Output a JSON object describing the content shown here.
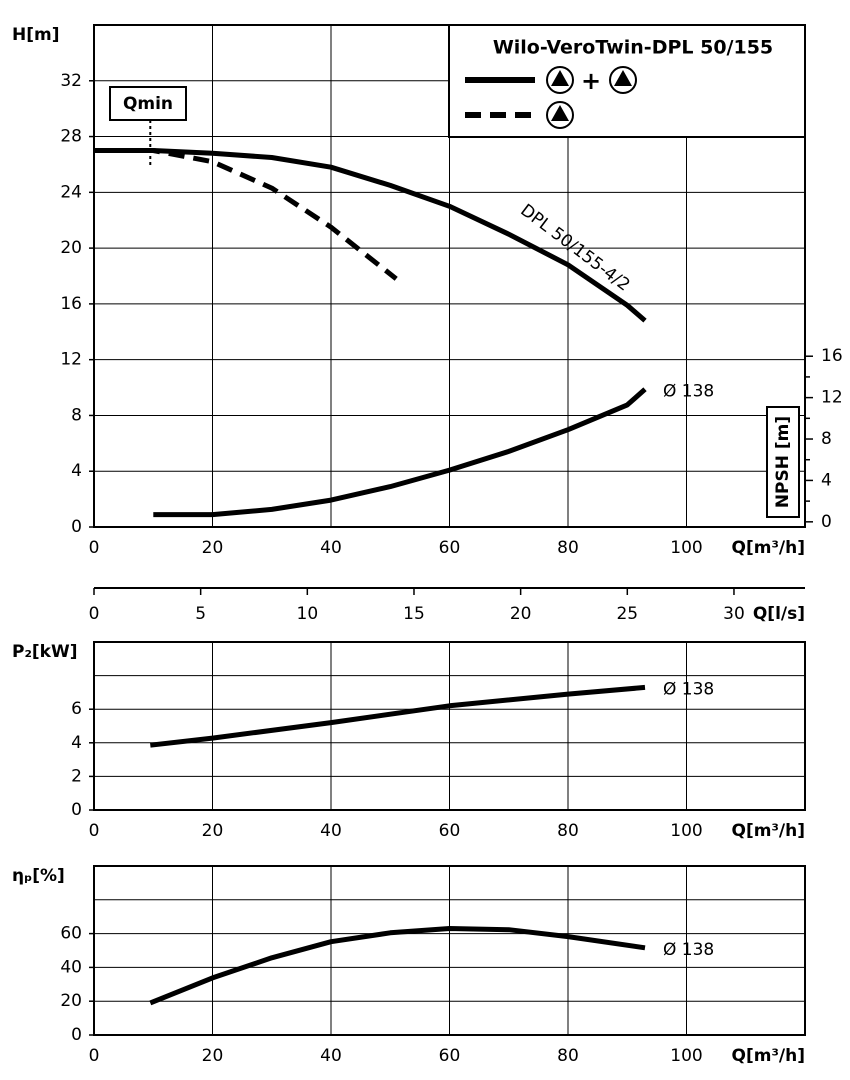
{
  "chart_data": [
    {
      "type": "line",
      "ylabel": "H[m]",
      "xlabel": "Q[m³/h]",
      "xlim": [
        0,
        120
      ],
      "xticks": [
        0,
        20,
        40,
        60,
        80,
        100
      ],
      "ylim": [
        0,
        36
      ],
      "yticks": [
        0,
        4,
        8,
        12,
        16,
        20,
        24,
        28,
        32
      ],
      "grid": true,
      "y2label": "NPSH [m]",
      "y2lim": [
        -0.5,
        48
      ],
      "y2ticks": [
        0,
        4,
        8,
        12,
        16
      ],
      "y2minor": [
        2,
        6,
        10,
        14
      ],
      "x2label": "Q[l/s]",
      "x2lim": [
        0,
        33.33
      ],
      "x2ticks": [
        0,
        5,
        10,
        15,
        20,
        25,
        30
      ],
      "legend": {
        "title": "Wilo-VeroTwin-DPL 50/155",
        "plus": "+"
      },
      "qmin": {
        "text": "Qmin",
        "x": 9.5
      },
      "series": [
        {
          "label": "DPL 50/155-4/2",
          "color": "#000000",
          "dash": false,
          "x": [
            0,
            10,
            20,
            30,
            40,
            50,
            60,
            70,
            80,
            90,
            93
          ],
          "values": [
            27.0,
            27.0,
            26.8,
            26.5,
            25.8,
            24.5,
            23.0,
            21.0,
            18.8,
            15.9,
            14.8
          ]
        },
        {
          "color": "#000000",
          "dash": true,
          "x": [
            0,
            10,
            20,
            30,
            40,
            51
          ],
          "values": [
            27.0,
            27.0,
            26.2,
            24.3,
            21.5,
            17.8
          ]
        },
        {
          "label": "Ø 138",
          "color": "#000000",
          "dash": false,
          "axis": "y2",
          "x": [
            10,
            20,
            30,
            40,
            50,
            60,
            70,
            80,
            90,
            93
          ],
          "values": [
            0.7,
            0.7,
            1.2,
            2.1,
            3.4,
            5.0,
            6.8,
            8.9,
            11.3,
            12.8
          ]
        }
      ]
    },
    {
      "type": "line",
      "ylabel": "P₂[kW]",
      "xlabel": "Q[m³/h]",
      "xlim": [
        0,
        120
      ],
      "xticks": [
        0,
        20,
        40,
        60,
        80,
        100
      ],
      "ylim": [
        0,
        10
      ],
      "yticks": [
        0,
        2,
        4,
        6
      ],
      "ygrid": [
        2,
        4,
        6,
        8
      ],
      "grid": true,
      "series": [
        {
          "label": "Ø 138",
          "color": "#000000",
          "dash": false,
          "x": [
            9.5,
            20,
            40,
            60,
            80,
            93
          ],
          "values": [
            3.86,
            4.28,
            5.2,
            6.2,
            6.9,
            7.3
          ]
        }
      ]
    },
    {
      "type": "line",
      "ylabel": "ηₚ[%]",
      "xlabel": "Q[m³/h]",
      "xlim": [
        0,
        120
      ],
      "xticks": [
        0,
        20,
        40,
        60,
        80,
        100
      ],
      "ylim": [
        0,
        100
      ],
      "yticks": [
        0,
        20,
        40,
        60
      ],
      "ygrid": [
        20,
        40,
        60,
        80
      ],
      "grid": true,
      "series": [
        {
          "label": "Ø 138",
          "color": "#000000",
          "dash": false,
          "x": [
            9.5,
            20,
            30,
            40,
            50,
            60,
            70,
            80,
            93
          ],
          "values": [
            19,
            33.8,
            45.7,
            55.2,
            60.5,
            63,
            62.3,
            58.2,
            51.6
          ]
        }
      ]
    }
  ]
}
